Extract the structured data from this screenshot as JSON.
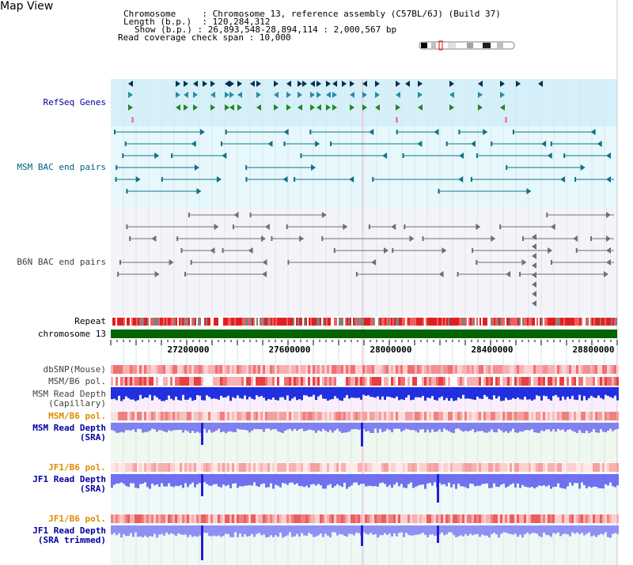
{
  "title": "Map View",
  "info": {
    "chromosome_label": "Chromosome",
    "chromosome_value": "Chromosome 13, reference assembly (C57BL/6J) (Build 37)",
    "length_label": "Length (b.p.)",
    "length_value": "120,284,312",
    "show_label": "Show (b.p.)",
    "show_value": "26,893,548-28,894,114 : 2,000,567 bp",
    "span_label": "Read coverage check span",
    "span_value": "10,000"
  },
  "tracks": {
    "refseq": "RefSeq Genes",
    "msm_bac": "MSM BAC end pairs",
    "b6n_bac": "B6N BAC end pairs",
    "repeat": "Repeat",
    "chromosome": "chromosome 13",
    "dbsnp": "dbSNP(Mouse)",
    "msm_b6_pol_1": "MSM/B6 pol.",
    "msm_depth_cap_1": "MSM Read Depth",
    "msm_depth_cap_2": "(Capillary)",
    "msm_b6_pol_2": "MSM/B6 pol.",
    "msm_depth_sra_1": "MSM Read Depth",
    "msm_depth_sra_2": "(SRA)",
    "jf1_b6_pol_1": "JF1/B6 pol.",
    "jf1_depth_sra_1": "JF1 Read Depth",
    "jf1_depth_sra_2": "(SRA)",
    "jf1_b6_pol_2": "JF1/B6 pol.",
    "jf1_depth_trim_1": "JF1 Read Depth",
    "jf1_depth_trim_2": "(SRA trimmed)"
  },
  "axis": {
    "ticks": [
      "27200000",
      "27600000",
      "28000000",
      "28400000",
      "28800000"
    ]
  },
  "colors": {
    "refseq_bg": "#d6f0fa",
    "msm_bac_bg": "#e6f8fb",
    "b6n_bg": "#f4f4f8",
    "chromosome_bar": "#006400",
    "label_blue": "#0000a0",
    "label_teal": "#006080",
    "label_gray": "#404040",
    "label_orange": "#e08a00"
  }
}
